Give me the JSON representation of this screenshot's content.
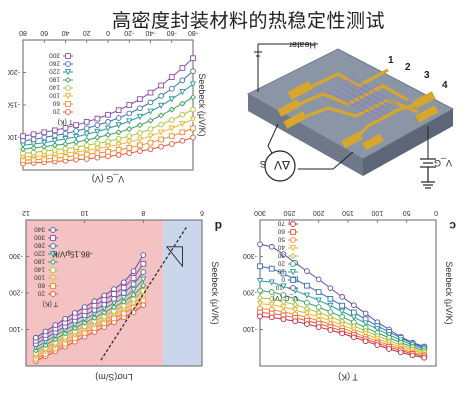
{
  "page": {
    "title": "高密度封装材料的热稳定性测试"
  },
  "chart_data": [
    {
      "id": "a",
      "type": "line",
      "orientation": "rotated-180",
      "xlabel": "V_G (V)",
      "ylabel": "Seebeck (μV/K)",
      "xlim": [
        -80,
        80
      ],
      "ylim": [
        -250,
        -50
      ],
      "xticks": [
        "80",
        "60",
        "40",
        "20",
        "0",
        "-20",
        "-40",
        "-60",
        "-80"
      ],
      "yticks": [
        "-100",
        "-150",
        "-200"
      ],
      "legend_title": "T (K)",
      "legend_placement": "left",
      "x": [
        80,
        70,
        60,
        50,
        40,
        30,
        20,
        10,
        0,
        -10,
        -20,
        -30,
        -40,
        -50,
        -60,
        -70,
        -80
      ],
      "series": [
        {
          "name": "20",
          "color": "#e6543c",
          "values": [
            -60,
            -61,
            -62,
            -63,
            -64,
            -66,
            -67,
            -69,
            -71,
            -73,
            -76,
            -79,
            -82,
            -86,
            -90,
            -95,
            -100
          ]
        },
        {
          "name": "60",
          "color": "#f08a2c",
          "values": [
            -65,
            -66,
            -67,
            -68,
            -70,
            -72,
            -74,
            -76,
            -78,
            -81,
            -84,
            -88,
            -92,
            -97,
            -102,
            -108,
            -114
          ]
        },
        {
          "name": "100",
          "color": "#f2b52e",
          "values": [
            -70,
            -71,
            -72,
            -74,
            -76,
            -78,
            -80,
            -83,
            -86,
            -89,
            -93,
            -97,
            -102,
            -108,
            -114,
            -121,
            -128
          ]
        },
        {
          "name": "140",
          "color": "#a8c23a",
          "values": [
            -76,
            -77,
            -79,
            -81,
            -83,
            -85,
            -88,
            -91,
            -94,
            -98,
            -102,
            -107,
            -113,
            -120,
            -127,
            -135,
            -143
          ]
        },
        {
          "name": "180",
          "color": "#3aa35a",
          "values": [
            -82,
            -84,
            -86,
            -88,
            -90,
            -93,
            -96,
            -100,
            -104,
            -108,
            -113,
            -119,
            -126,
            -134,
            -143,
            -152,
            -162
          ]
        },
        {
          "name": "220",
          "color": "#2c9a9a",
          "values": [
            -88,
            -90,
            -92,
            -95,
            -98,
            -101,
            -105,
            -109,
            -114,
            -119,
            -125,
            -132,
            -140,
            -149,
            -159,
            -170,
            -182
          ]
        },
        {
          "name": "260",
          "color": "#3a6fb5",
          "values": [
            -95,
            -97,
            -100,
            -103,
            -106,
            -110,
            -114,
            -119,
            -124,
            -130,
            -137,
            -145,
            -154,
            -164,
            -175,
            -188,
            -202
          ]
        },
        {
          "name": "300",
          "color": "#8a4fa8",
          "values": [
            -102,
            -105,
            -108,
            -111,
            -115,
            -119,
            -124,
            -129,
            -135,
            -142,
            -150,
            -159,
            -169,
            -180,
            -193,
            -207,
            -222
          ]
        }
      ]
    },
    {
      "id": "b",
      "type": "diagram",
      "labels": {
        "heater": "Heater",
        "n1": "1",
        "n2": "2",
        "n3": "3",
        "n4": "4",
        "dv": "ΔV",
        "s": "S",
        "vg": "V_G"
      }
    },
    {
      "id": "c",
      "type": "line",
      "orientation": "rotated-180",
      "panel_label": "c",
      "xlabel": "T (K)",
      "ylabel": "Seebeck (μV/K)",
      "xlim": [
        0,
        300
      ],
      "ylim": [
        -350,
        -50
      ],
      "xticks": [
        "300",
        "250",
        "200",
        "150",
        "100",
        "50",
        "0"
      ],
      "yticks": [
        "-100",
        "-200",
        "-300"
      ],
      "legend_title": "V_G (V)",
      "legend_placement": "bottom-right",
      "x": [
        300,
        280,
        260,
        240,
        220,
        200,
        180,
        160,
        140,
        120,
        100,
        80,
        60,
        40,
        20
      ],
      "series": [
        {
          "name": "-10",
          "color": "#5a4fa8",
          "values": [
            -300,
            -295,
            -280,
            -262,
            -245,
            -228,
            -210,
            -192,
            -175,
            -158,
            -140,
            -125,
            -110,
            -98,
            -90
          ]
        },
        {
          "name": "0",
          "color": "#3a6fb5",
          "values": [
            -255,
            -250,
            -240,
            -228,
            -215,
            -202,
            -188,
            -174,
            -160,
            -146,
            -132,
            -120,
            -108,
            -96,
            -88
          ]
        },
        {
          "name": "10",
          "color": "#2c9a9a",
          "values": [
            -225,
            -222,
            -214,
            -205,
            -195,
            -185,
            -174,
            -162,
            -150,
            -138,
            -126,
            -114,
            -103,
            -93,
            -85
          ]
        },
        {
          "name": "20",
          "color": "#3aa35a",
          "values": [
            -205,
            -202,
            -196,
            -188,
            -180,
            -171,
            -161,
            -151,
            -140,
            -129,
            -118,
            -108,
            -98,
            -89,
            -82
          ]
        },
        {
          "name": "30",
          "color": "#a8c23a",
          "values": [
            -190,
            -188,
            -182,
            -176,
            -168,
            -160,
            -151,
            -142,
            -132,
            -122,
            -112,
            -102,
            -93,
            -85,
            -79
          ]
        },
        {
          "name": "40",
          "color": "#f2b52e",
          "values": [
            -178,
            -176,
            -171,
            -165,
            -158,
            -151,
            -143,
            -134,
            -125,
            -116,
            -106,
            -97,
            -89,
            -82,
            -76
          ]
        },
        {
          "name": "50",
          "color": "#f08a2c",
          "values": [
            -168,
            -166,
            -161,
            -156,
            -150,
            -143,
            -136,
            -128,
            -119,
            -110,
            -101,
            -93,
            -85,
            -78,
            -73
          ]
        },
        {
          "name": "60",
          "color": "#e6543c",
          "values": [
            -160,
            -158,
            -154,
            -149,
            -143,
            -137,
            -130,
            -122,
            -114,
            -105,
            -97,
            -89,
            -82,
            -75,
            -70
          ]
        },
        {
          "name": "70",
          "color": "#c8283c",
          "values": [
            -152,
            -150,
            -146,
            -142,
            -136,
            -130,
            -124,
            -117,
            -109,
            -101,
            -93,
            -85,
            -78,
            -72,
            -67
          ]
        }
      ]
    },
    {
      "id": "d",
      "type": "scatter",
      "orientation": "rotated-180",
      "panel_label": "d",
      "xlabel": "Lnσ(S/m)",
      "ylabel": "Seebeck (μV/K)",
      "xlim": [
        4,
        13
      ],
      "ylim": [
        -350,
        -50
      ],
      "xticks": [
        "12",
        "10",
        "8",
        "6"
      ],
      "yticks": [
        "-100",
        "-200",
        "-300"
      ],
      "annotation": "-86.15μV/K",
      "slope": -86.15,
      "legend_title": "T (K)",
      "legend_placement": "bottom-left",
      "shading": {
        "left_color": "#f4c2c2",
        "right_color": "#c9d6ec",
        "boundary_x": 6
      },
      "series": [
        {
          "name": "20",
          "color": "#e6543c",
          "x": [
            12.5,
            12,
            11.5,
            11,
            10.5,
            10,
            9.5,
            9,
            8.5,
            8,
            7.5,
            7
          ],
          "values": [
            -60,
            -70,
            -80,
            -90,
            -100,
            -110,
            -120,
            -130,
            -140,
            -150,
            -160,
            -175
          ]
        },
        {
          "name": "60",
          "color": "#f08a2c",
          "x": [
            12.5,
            12,
            11.5,
            11,
            10.5,
            10,
            9.5,
            9,
            8.5,
            8,
            7.5,
            7
          ],
          "values": [
            -65,
            -75,
            -86,
            -96,
            -107,
            -118,
            -128,
            -138,
            -148,
            -158,
            -170,
            -185
          ]
        },
        {
          "name": "100",
          "color": "#f2b52e",
          "x": [
            12.5,
            12,
            11.5,
            11,
            10.5,
            10,
            9.5,
            9,
            8.5,
            8,
            7.5,
            7
          ],
          "values": [
            -70,
            -81,
            -92,
            -103,
            -114,
            -125,
            -135,
            -145,
            -156,
            -166,
            -178,
            -194
          ]
        },
        {
          "name": "140",
          "color": "#a8c23a",
          "x": [
            12.5,
            12,
            11.5,
            11,
            10.5,
            10,
            9.5,
            9,
            8.5,
            8,
            7.5,
            7
          ],
          "values": [
            -76,
            -87,
            -98,
            -110,
            -121,
            -132,
            -142,
            -152,
            -163,
            -174,
            -187,
            -204
          ]
        },
        {
          "name": "180",
          "color": "#3aa35a",
          "x": [
            12.5,
            12,
            11.5,
            11,
            10.5,
            10,
            9.5,
            9,
            8.5,
            8,
            7.5,
            7
          ],
          "values": [
            -82,
            -93,
            -105,
            -117,
            -128,
            -139,
            -149,
            -160,
            -171,
            -182,
            -196,
            -215
          ]
        },
        {
          "name": "220",
          "color": "#2c9a9a",
          "x": [
            12.5,
            12,
            11.5,
            11,
            10.5,
            10,
            9.5,
            9,
            8.5,
            8,
            7.5,
            7
          ],
          "values": [
            -88,
            -100,
            -112,
            -124,
            -135,
            -146,
            -157,
            -168,
            -179,
            -190,
            -206,
            -228
          ]
        },
        {
          "name": "260",
          "color": "#3a6fb5",
          "x": [
            12.5,
            12,
            11.5,
            11,
            10.5,
            10,
            9.5,
            9,
            8.5,
            8,
            7.5,
            7
          ],
          "values": [
            -95,
            -107,
            -119,
            -131,
            -143,
            -154,
            -165,
            -176,
            -188,
            -200,
            -218,
            -243
          ]
        },
        {
          "name": "300",
          "color": "#8a4fa8",
          "x": [
            12.5,
            12,
            11.5,
            11,
            10.5,
            10,
            9.5,
            9,
            8.5,
            8,
            7.5,
            7
          ],
          "values": [
            -102,
            -114,
            -127,
            -139,
            -151,
            -163,
            -174,
            -186,
            -198,
            -211,
            -231,
            -260
          ]
        },
        {
          "name": "340",
          "color": "#5a4fa8",
          "x": [
            12.5,
            12,
            11.5,
            11,
            10.5,
            10,
            9.5,
            9,
            8.5,
            8,
            7.5,
            7
          ],
          "values": [
            -108,
            -121,
            -134,
            -147,
            -159,
            -171,
            -183,
            -195,
            -208,
            -222,
            -245,
            -278
          ]
        }
      ]
    }
  ]
}
